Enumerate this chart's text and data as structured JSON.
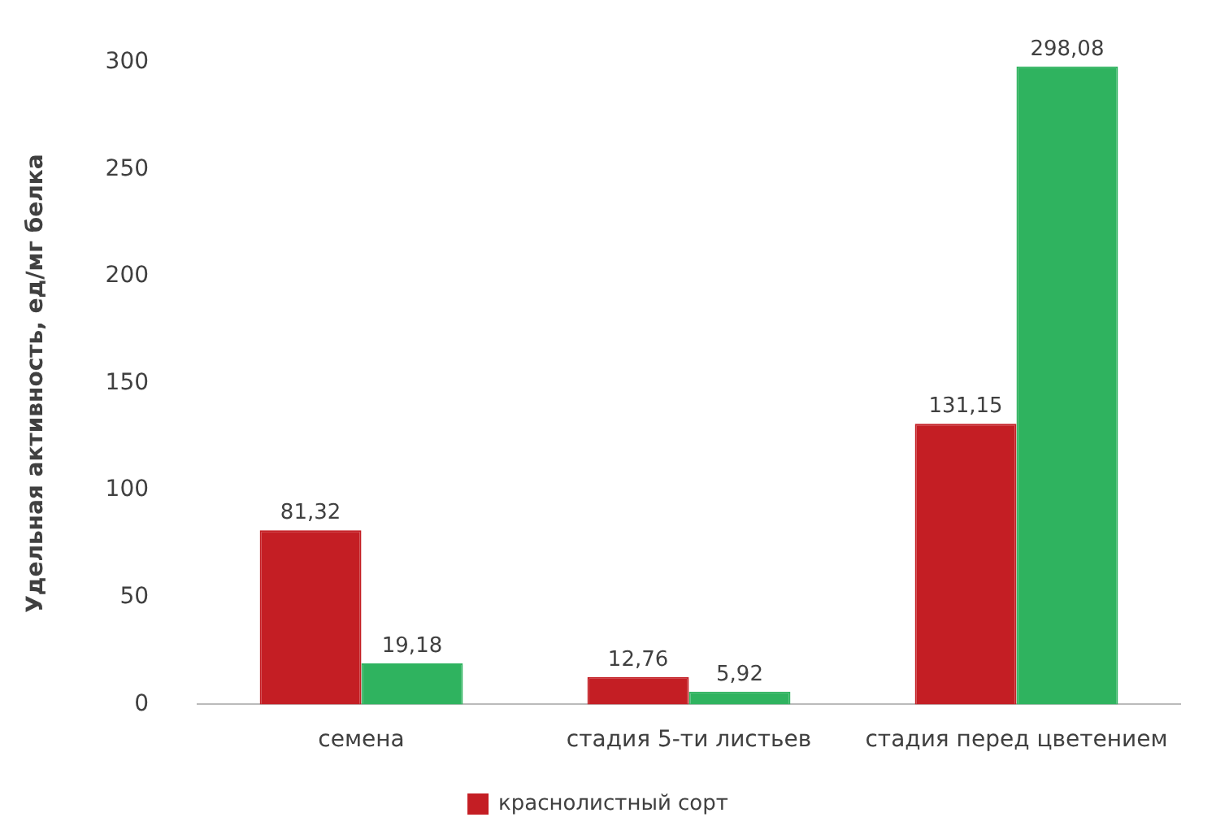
{
  "chart_data": {
    "type": "bar",
    "ylabel": "Удельная активность, ед/мг белка",
    "categories": [
      "семена",
      "стадия 5-ти листьев",
      "стадия перед цветением"
    ],
    "series": [
      {
        "name": "краснолистный сорт",
        "color": "#c41e24",
        "values": [
          81.32,
          12.76,
          131.15
        ],
        "value_labels": [
          "81,32",
          "12,76",
          "131,15"
        ]
      },
      {
        "color": "#2fb35f",
        "values": [
          19.18,
          5.92,
          298.08
        ],
        "value_labels": [
          "19,18",
          "5,92",
          "298,08"
        ]
      }
    ],
    "ylim": [
      0,
      300
    ],
    "yticks": [
      0,
      50,
      100,
      150,
      200,
      250,
      300
    ],
    "grid": false,
    "legend": "bottom"
  }
}
